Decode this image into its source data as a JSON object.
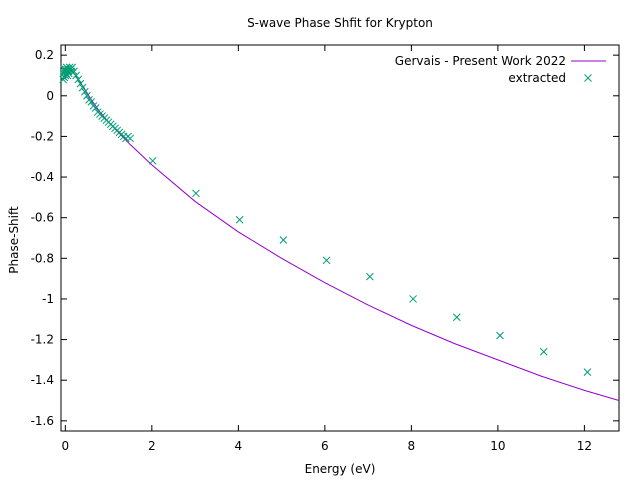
{
  "chart_data": {
    "type": "line+scatter",
    "title": "S-wave Phase Shfit for Krypton",
    "xlabel": "Energy (eV)",
    "ylabel": "Phase-Shift",
    "xlim": [
      -0.1,
      12.8
    ],
    "ylim": [
      -1.65,
      0.25
    ],
    "xticks": [
      0,
      2,
      4,
      6,
      8,
      10,
      12
    ],
    "xtick_labels": [
      "0",
      "2",
      "4",
      "6",
      "8",
      "10",
      "12"
    ],
    "yticks": [
      0.2,
      0,
      -0.2,
      -0.4,
      -0.6,
      -0.8,
      -1,
      -1.2,
      -1.4,
      -1.6
    ],
    "ytick_labels": [
      "0.2",
      "0",
      "-0.2",
      "-0.4",
      "-0.6",
      "-0.8",
      "-1",
      "-1.2",
      "-1.4",
      "-1.6"
    ],
    "legend_position": "top-right",
    "grid": false,
    "series": [
      {
        "name": "Gervais - Present Work 2022",
        "kind": "line",
        "color": "#9400d3",
        "x": [
          0.0,
          0.05,
          0.1,
          0.15,
          0.2,
          0.3,
          0.4,
          0.6,
          0.8,
          1.0,
          1.5,
          2.0,
          3.0,
          4.0,
          5.0,
          6.0,
          7.0,
          8.0,
          9.0,
          10.0,
          11.0,
          12.0,
          12.8
        ],
        "y": [
          0.08,
          0.12,
          0.13,
          0.12,
          0.11,
          0.08,
          0.05,
          -0.02,
          -0.08,
          -0.13,
          -0.24,
          -0.34,
          -0.52,
          -0.67,
          -0.8,
          -0.92,
          -1.03,
          -1.13,
          -1.22,
          -1.3,
          -1.38,
          -1.45,
          -1.5
        ]
      },
      {
        "name": "extracted",
        "kind": "points",
        "color": "#009e73",
        "marker": "x",
        "x": [
          -0.05,
          -0.04,
          -0.03,
          -0.02,
          -0.01,
          0.0,
          0.01,
          0.02,
          0.03,
          0.04,
          0.05,
          0.06,
          0.07,
          0.08,
          0.1,
          0.12,
          0.14,
          0.16,
          0.2,
          0.25,
          0.3,
          0.35,
          0.4,
          0.45,
          0.5,
          0.55,
          0.6,
          0.65,
          0.7,
          0.75,
          0.8,
          0.85,
          0.9,
          0.95,
          1.0,
          1.05,
          1.1,
          1.15,
          1.2,
          1.25,
          1.3,
          1.35,
          1.4,
          1.45,
          1.5,
          2.02,
          3.02,
          4.03,
          5.04,
          6.04,
          7.04,
          8.04,
          9.05,
          10.05,
          11.06,
          12.07
        ],
        "y": [
          0.08,
          0.11,
          0.13,
          0.09,
          0.12,
          0.1,
          0.13,
          0.11,
          0.14,
          0.12,
          0.1,
          0.13,
          0.12,
          0.11,
          0.14,
          0.13,
          0.12,
          0.14,
          0.12,
          0.1,
          0.08,
          0.06,
          0.04,
          0.02,
          0.0,
          -0.02,
          -0.03,
          -0.05,
          -0.06,
          -0.08,
          -0.09,
          -0.1,
          -0.11,
          -0.12,
          -0.13,
          -0.14,
          -0.15,
          -0.16,
          -0.17,
          -0.18,
          -0.19,
          -0.2,
          -0.21,
          -0.2,
          -0.21,
          -0.32,
          -0.48,
          -0.61,
          -0.71,
          -0.81,
          -0.89,
          -1.0,
          -1.09,
          -1.18,
          -1.26,
          -1.36
        ]
      }
    ]
  }
}
